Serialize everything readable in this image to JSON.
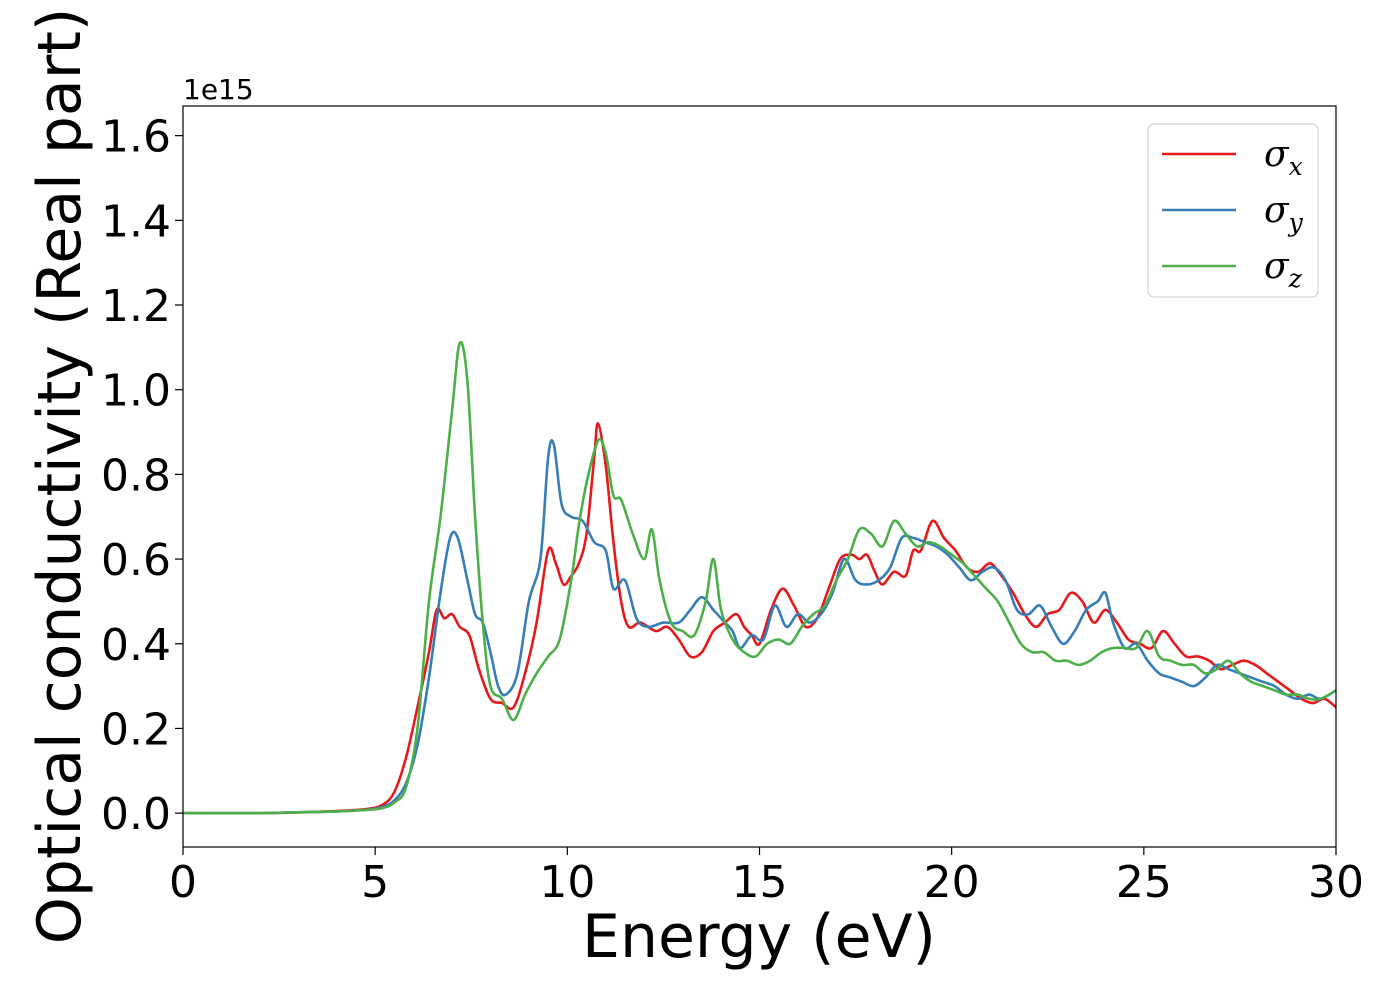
{
  "chart_data": {
    "type": "line",
    "xlabel": "Energy (eV)",
    "ylabel": "Optical conductivity (Real part)",
    "y_offset_text": "1e15",
    "xlim": [
      0,
      30
    ],
    "ylim": [
      -0.08,
      1.67
    ],
    "x_ticks": [
      0,
      5,
      10,
      15,
      20,
      25,
      30
    ],
    "x_tick_labels": [
      "0",
      "5",
      "10",
      "15",
      "20",
      "25",
      "30"
    ],
    "y_ticks": [
      0.0,
      0.2,
      0.4,
      0.6,
      0.8,
      1.0,
      1.2,
      1.4,
      1.6
    ],
    "y_tick_labels": [
      "0.0",
      "0.2",
      "0.4",
      "0.6",
      "0.8",
      "1.0",
      "1.2",
      "1.4",
      "1.6"
    ],
    "grid": false,
    "legend_position": "top-right",
    "series": [
      {
        "name": "σx",
        "symbol": "σ",
        "subscript": "x",
        "color": "#e41a1c",
        "points": [
          [
            0,
            0.0
          ],
          [
            2,
            0.0
          ],
          [
            3,
            0.002
          ],
          [
            4,
            0.005
          ],
          [
            4.8,
            0.01
          ],
          [
            5.2,
            0.02
          ],
          [
            5.5,
            0.05
          ],
          [
            5.8,
            0.13
          ],
          [
            6.1,
            0.25
          ],
          [
            6.4,
            0.38
          ],
          [
            6.6,
            0.48
          ],
          [
            6.8,
            0.46
          ],
          [
            7.0,
            0.47
          ],
          [
            7.2,
            0.44
          ],
          [
            7.45,
            0.42
          ],
          [
            7.7,
            0.34
          ],
          [
            8.0,
            0.27
          ],
          [
            8.3,
            0.26
          ],
          [
            8.6,
            0.25
          ],
          [
            8.9,
            0.33
          ],
          [
            9.2,
            0.45
          ],
          [
            9.5,
            0.62
          ],
          [
            9.7,
            0.59
          ],
          [
            9.9,
            0.54
          ],
          [
            10.1,
            0.56
          ],
          [
            10.3,
            0.59
          ],
          [
            10.5,
            0.66
          ],
          [
            10.7,
            0.84
          ],
          [
            10.8,
            0.92
          ],
          [
            11.0,
            0.82
          ],
          [
            11.2,
            0.64
          ],
          [
            11.4,
            0.5
          ],
          [
            11.6,
            0.44
          ],
          [
            11.9,
            0.45
          ],
          [
            12.3,
            0.43
          ],
          [
            12.6,
            0.44
          ],
          [
            12.9,
            0.41
          ],
          [
            13.2,
            0.37
          ],
          [
            13.5,
            0.38
          ],
          [
            13.8,
            0.43
          ],
          [
            14.1,
            0.45
          ],
          [
            14.4,
            0.47
          ],
          [
            14.6,
            0.44
          ],
          [
            14.8,
            0.42
          ],
          [
            15.0,
            0.4
          ],
          [
            15.3,
            0.48
          ],
          [
            15.6,
            0.53
          ],
          [
            15.9,
            0.49
          ],
          [
            16.2,
            0.44
          ],
          [
            16.5,
            0.46
          ],
          [
            16.8,
            0.53
          ],
          [
            17.1,
            0.6
          ],
          [
            17.4,
            0.61
          ],
          [
            17.6,
            0.6
          ],
          [
            17.8,
            0.61
          ],
          [
            18.0,
            0.57
          ],
          [
            18.2,
            0.54
          ],
          [
            18.5,
            0.57
          ],
          [
            18.8,
            0.56
          ],
          [
            19.0,
            0.62
          ],
          [
            19.2,
            0.62
          ],
          [
            19.5,
            0.69
          ],
          [
            19.8,
            0.65
          ],
          [
            20.1,
            0.62
          ],
          [
            20.4,
            0.58
          ],
          [
            20.7,
            0.57
          ],
          [
            21.0,
            0.59
          ],
          [
            21.3,
            0.56
          ],
          [
            21.6,
            0.52
          ],
          [
            21.9,
            0.47
          ],
          [
            22.2,
            0.44
          ],
          [
            22.5,
            0.47
          ],
          [
            22.8,
            0.48
          ],
          [
            23.1,
            0.52
          ],
          [
            23.4,
            0.5
          ],
          [
            23.7,
            0.45
          ],
          [
            24.0,
            0.48
          ],
          [
            24.3,
            0.45
          ],
          [
            24.6,
            0.41
          ],
          [
            24.9,
            0.4
          ],
          [
            25.2,
            0.39
          ],
          [
            25.5,
            0.43
          ],
          [
            25.8,
            0.4
          ],
          [
            26.1,
            0.37
          ],
          [
            26.4,
            0.37
          ],
          [
            26.7,
            0.36
          ],
          [
            27.0,
            0.34
          ],
          [
            27.3,
            0.35
          ],
          [
            27.6,
            0.36
          ],
          [
            27.9,
            0.35
          ],
          [
            28.2,
            0.33
          ],
          [
            28.5,
            0.31
          ],
          [
            28.8,
            0.29
          ],
          [
            29.1,
            0.27
          ],
          [
            29.4,
            0.26
          ],
          [
            29.7,
            0.27
          ],
          [
            30.0,
            0.25
          ]
        ]
      },
      {
        "name": "σy",
        "symbol": "σ",
        "subscript": "y",
        "color": "#377eb8",
        "points": [
          [
            0,
            0.0
          ],
          [
            2,
            0.0
          ],
          [
            3,
            0.002
          ],
          [
            4,
            0.004
          ],
          [
            4.8,
            0.008
          ],
          [
            5.2,
            0.015
          ],
          [
            5.5,
            0.03
          ],
          [
            5.8,
            0.07
          ],
          [
            6.1,
            0.16
          ],
          [
            6.4,
            0.32
          ],
          [
            6.7,
            0.52
          ],
          [
            6.95,
            0.65
          ],
          [
            7.15,
            0.65
          ],
          [
            7.4,
            0.55
          ],
          [
            7.6,
            0.47
          ],
          [
            7.8,
            0.45
          ],
          [
            8.0,
            0.38
          ],
          [
            8.2,
            0.3
          ],
          [
            8.4,
            0.28
          ],
          [
            8.7,
            0.33
          ],
          [
            9.0,
            0.5
          ],
          [
            9.3,
            0.6
          ],
          [
            9.5,
            0.84
          ],
          [
            9.65,
            0.87
          ],
          [
            9.85,
            0.73
          ],
          [
            10.1,
            0.7
          ],
          [
            10.4,
            0.69
          ],
          [
            10.7,
            0.64
          ],
          [
            11.0,
            0.62
          ],
          [
            11.2,
            0.53
          ],
          [
            11.5,
            0.55
          ],
          [
            11.8,
            0.46
          ],
          [
            12.1,
            0.44
          ],
          [
            12.5,
            0.45
          ],
          [
            12.9,
            0.45
          ],
          [
            13.2,
            0.48
          ],
          [
            13.5,
            0.51
          ],
          [
            13.8,
            0.48
          ],
          [
            14.1,
            0.45
          ],
          [
            14.3,
            0.43
          ],
          [
            14.5,
            0.39
          ],
          [
            14.8,
            0.42
          ],
          [
            15.1,
            0.41
          ],
          [
            15.4,
            0.49
          ],
          [
            15.7,
            0.44
          ],
          [
            16.0,
            0.47
          ],
          [
            16.3,
            0.45
          ],
          [
            16.6,
            0.47
          ],
          [
            16.9,
            0.52
          ],
          [
            17.2,
            0.6
          ],
          [
            17.5,
            0.55
          ],
          [
            17.8,
            0.54
          ],
          [
            18.1,
            0.55
          ],
          [
            18.4,
            0.58
          ],
          [
            18.7,
            0.65
          ],
          [
            19.0,
            0.65
          ],
          [
            19.3,
            0.64
          ],
          [
            19.6,
            0.63
          ],
          [
            19.9,
            0.61
          ],
          [
            20.2,
            0.58
          ],
          [
            20.5,
            0.55
          ],
          [
            20.8,
            0.57
          ],
          [
            21.1,
            0.58
          ],
          [
            21.4,
            0.55
          ],
          [
            21.7,
            0.48
          ],
          [
            22.0,
            0.47
          ],
          [
            22.3,
            0.49
          ],
          [
            22.6,
            0.44
          ],
          [
            22.9,
            0.4
          ],
          [
            23.2,
            0.43
          ],
          [
            23.5,
            0.48
          ],
          [
            23.8,
            0.5
          ],
          [
            24.0,
            0.52
          ],
          [
            24.2,
            0.45
          ],
          [
            24.5,
            0.39
          ],
          [
            24.8,
            0.4
          ],
          [
            25.1,
            0.36
          ],
          [
            25.4,
            0.33
          ],
          [
            25.7,
            0.32
          ],
          [
            26.0,
            0.31
          ],
          [
            26.3,
            0.3
          ],
          [
            26.6,
            0.32
          ],
          [
            26.9,
            0.35
          ],
          [
            27.2,
            0.34
          ],
          [
            27.5,
            0.33
          ],
          [
            27.8,
            0.32
          ],
          [
            28.1,
            0.31
          ],
          [
            28.4,
            0.3
          ],
          [
            28.7,
            0.28
          ],
          [
            29.0,
            0.27
          ],
          [
            29.3,
            0.28
          ],
          [
            29.6,
            0.27
          ],
          [
            30.0,
            0.29
          ]
        ]
      },
      {
        "name": "σz",
        "symbol": "σ",
        "subscript": "z",
        "color": "#4daf4a",
        "points": [
          [
            0,
            0.0
          ],
          [
            2,
            0.0
          ],
          [
            3,
            0.002
          ],
          [
            4,
            0.004
          ],
          [
            4.8,
            0.008
          ],
          [
            5.2,
            0.012
          ],
          [
            5.5,
            0.025
          ],
          [
            5.8,
            0.06
          ],
          [
            6.1,
            0.2
          ],
          [
            6.4,
            0.5
          ],
          [
            6.7,
            0.7
          ],
          [
            7.0,
            0.95
          ],
          [
            7.2,
            1.11
          ],
          [
            7.4,
            1.02
          ],
          [
            7.6,
            0.7
          ],
          [
            7.8,
            0.45
          ],
          [
            8.0,
            0.3
          ],
          [
            8.3,
            0.27
          ],
          [
            8.6,
            0.22
          ],
          [
            8.9,
            0.28
          ],
          [
            9.2,
            0.33
          ],
          [
            9.5,
            0.37
          ],
          [
            9.8,
            0.41
          ],
          [
            10.1,
            0.55
          ],
          [
            10.3,
            0.68
          ],
          [
            10.5,
            0.78
          ],
          [
            10.8,
            0.88
          ],
          [
            11.0,
            0.85
          ],
          [
            11.2,
            0.75
          ],
          [
            11.4,
            0.74
          ],
          [
            11.7,
            0.66
          ],
          [
            12.0,
            0.6
          ],
          [
            12.2,
            0.67
          ],
          [
            12.4,
            0.55
          ],
          [
            12.7,
            0.45
          ],
          [
            13.0,
            0.43
          ],
          [
            13.3,
            0.42
          ],
          [
            13.6,
            0.5
          ],
          [
            13.8,
            0.6
          ],
          [
            14.0,
            0.48
          ],
          [
            14.3,
            0.41
          ],
          [
            14.6,
            0.38
          ],
          [
            14.9,
            0.37
          ],
          [
            15.2,
            0.4
          ],
          [
            15.5,
            0.41
          ],
          [
            15.8,
            0.4
          ],
          [
            16.1,
            0.44
          ],
          [
            16.4,
            0.47
          ],
          [
            16.7,
            0.49
          ],
          [
            17.0,
            0.55
          ],
          [
            17.3,
            0.6
          ],
          [
            17.6,
            0.67
          ],
          [
            17.9,
            0.66
          ],
          [
            18.2,
            0.63
          ],
          [
            18.5,
            0.69
          ],
          [
            18.8,
            0.66
          ],
          [
            19.1,
            0.63
          ],
          [
            19.4,
            0.64
          ],
          [
            19.7,
            0.63
          ],
          [
            20.0,
            0.61
          ],
          [
            20.3,
            0.59
          ],
          [
            20.6,
            0.56
          ],
          [
            20.9,
            0.53
          ],
          [
            21.2,
            0.5
          ],
          [
            21.5,
            0.45
          ],
          [
            21.8,
            0.4
          ],
          [
            22.1,
            0.38
          ],
          [
            22.4,
            0.38
          ],
          [
            22.7,
            0.36
          ],
          [
            23.0,
            0.36
          ],
          [
            23.3,
            0.35
          ],
          [
            23.6,
            0.36
          ],
          [
            23.9,
            0.38
          ],
          [
            24.2,
            0.39
          ],
          [
            24.5,
            0.39
          ],
          [
            24.8,
            0.39
          ],
          [
            25.1,
            0.43
          ],
          [
            25.4,
            0.37
          ],
          [
            25.7,
            0.36
          ],
          [
            26.0,
            0.35
          ],
          [
            26.3,
            0.35
          ],
          [
            26.6,
            0.33
          ],
          [
            26.9,
            0.34
          ],
          [
            27.2,
            0.36
          ],
          [
            27.5,
            0.33
          ],
          [
            27.8,
            0.31
          ],
          [
            28.1,
            0.3
          ],
          [
            28.4,
            0.29
          ],
          [
            28.7,
            0.28
          ],
          [
            29.0,
            0.28
          ],
          [
            29.3,
            0.27
          ],
          [
            29.6,
            0.27
          ],
          [
            30.0,
            0.29
          ]
        ]
      }
    ]
  }
}
